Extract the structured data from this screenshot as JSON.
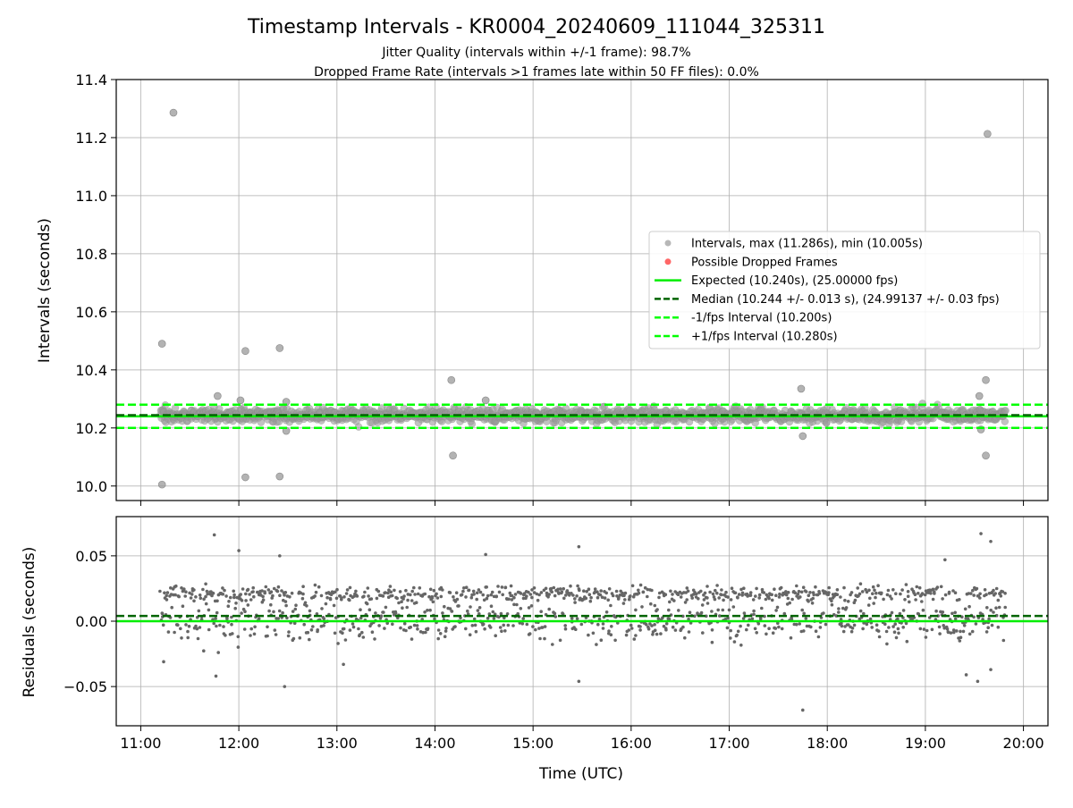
{
  "figure": {
    "title": "Timestamp Intervals - KR0004_20240609_111044_325311",
    "subtitle_1": "Jitter Quality (intervals within +/-1 frame): 98.7%",
    "subtitle_2": "Dropped Frame Rate (intervals >1 frames late within 50 FF files): 0.0%"
  },
  "colors": {
    "intervals": "#999999",
    "dropped": "#ff0000",
    "expected": "#00ee00",
    "median": "#006400",
    "fps_bounds": "#00ff00",
    "residuals": "#666666",
    "grid": "#b0b0b0"
  },
  "chart_data": [
    {
      "type": "scatter",
      "panel": "intervals",
      "ylabel": "Intervals (seconds)",
      "x_range": [
        "10:45",
        "20:15"
      ],
      "ylim": [
        9.95,
        11.4
      ],
      "y_ticks": [
        "10.0",
        "10.2",
        "10.4",
        "10.6",
        "10.8",
        "11.0",
        "11.2",
        "11.4"
      ],
      "y_tick_values": [
        10.0,
        10.2,
        10.4,
        10.6,
        10.8,
        11.0,
        11.2,
        11.4
      ],
      "grid": true,
      "legend_position": "center-right",
      "series": [
        {
          "name": "Intervals, max (11.286s), min (10.005s)",
          "kind": "scatter"
        },
        {
          "name": "Possible Dropped Frames",
          "kind": "scatter"
        },
        {
          "name": "Expected (10.240s), (25.00000 fps)",
          "kind": "hline",
          "y": 10.24,
          "style": "solid"
        },
        {
          "name": "Median (10.244 +/- 0.013 s), (24.99137 +/- 0.03 fps)",
          "kind": "hline",
          "y": 10.244,
          "style": "dashed"
        },
        {
          "name": "-1/fps Interval (10.200s)",
          "kind": "hline",
          "y": 10.2,
          "style": "dashed"
        },
        {
          "name": "+1/fps Interval (10.280s)",
          "kind": "hline",
          "y": 10.28,
          "style": "dashed"
        }
      ],
      "data_start": "11:12",
      "data_end": "19:49",
      "band": {
        "center": 10.244,
        "spread": 0.013
      },
      "outliers": [
        {
          "x": "11:20",
          "y": 11.286
        },
        {
          "x": "19:38",
          "y": 11.213
        },
        {
          "x": "11:13",
          "y": 10.49
        },
        {
          "x": "12:04",
          "y": 10.465
        },
        {
          "x": "12:25",
          "y": 10.475
        },
        {
          "x": "14:10",
          "y": 10.365
        },
        {
          "x": "19:37",
          "y": 10.365
        },
        {
          "x": "17:44",
          "y": 10.335
        },
        {
          "x": "11:47",
          "y": 10.31
        },
        {
          "x": "14:31",
          "y": 10.295
        },
        {
          "x": "19:33",
          "y": 10.31
        },
        {
          "x": "12:01",
          "y": 10.295
        },
        {
          "x": "12:29",
          "y": 10.29
        },
        {
          "x": "12:29",
          "y": 10.19
        },
        {
          "x": "17:45",
          "y": 10.172
        },
        {
          "x": "19:34",
          "y": 10.195
        },
        {
          "x": "14:11",
          "y": 10.105
        },
        {
          "x": "19:37",
          "y": 10.105
        },
        {
          "x": "12:04",
          "y": 10.03
        },
        {
          "x": "12:25",
          "y": 10.033
        },
        {
          "x": "11:13",
          "y": 10.005
        }
      ]
    },
    {
      "type": "scatter",
      "panel": "residuals",
      "ylabel": "Residuals (seconds)",
      "xlabel": "Time (UTC)",
      "x_ticks": [
        "11:00",
        "12:00",
        "13:00",
        "14:00",
        "15:00",
        "16:00",
        "17:00",
        "18:00",
        "19:00",
        "20:00"
      ],
      "x_range": [
        "10:45",
        "20:15"
      ],
      "ylim": [
        -0.08,
        0.08
      ],
      "y_ticks": [
        "−0.05",
        "0.00",
        "0.05"
      ],
      "y_tick_values": [
        -0.05,
        0.0,
        0.05
      ],
      "grid": true,
      "hlines": [
        {
          "y": 0.0,
          "style": "solid",
          "role": "expected"
        },
        {
          "y": 0.004,
          "style": "dashed",
          "role": "median"
        }
      ],
      "clusters": [
        {
          "center": 0.021,
          "spread": 0.003
        },
        {
          "center": 0.0,
          "spread": 0.008
        }
      ],
      "outliers": [
        {
          "x": "11:45",
          "y": 0.066
        },
        {
          "x": "19:34",
          "y": 0.067
        },
        {
          "x": "19:40",
          "y": 0.061
        },
        {
          "x": "12:00",
          "y": 0.054
        },
        {
          "x": "14:31",
          "y": 0.051
        },
        {
          "x": "12:25",
          "y": 0.05
        },
        {
          "x": "15:28",
          "y": 0.057
        },
        {
          "x": "19:12",
          "y": 0.047
        },
        {
          "x": "11:14",
          "y": -0.031
        },
        {
          "x": "11:46",
          "y": -0.042
        },
        {
          "x": "15:28",
          "y": -0.046
        },
        {
          "x": "12:28",
          "y": -0.05
        },
        {
          "x": "19:32",
          "y": -0.046
        },
        {
          "x": "19:25",
          "y": -0.041
        },
        {
          "x": "17:45",
          "y": -0.068
        },
        {
          "x": "19:40",
          "y": -0.037
        },
        {
          "x": "13:04",
          "y": -0.033
        }
      ]
    }
  ]
}
